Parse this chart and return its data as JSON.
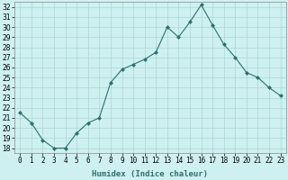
{
  "x": [
    0,
    1,
    2,
    3,
    4,
    5,
    6,
    7,
    8,
    9,
    10,
    11,
    12,
    13,
    14,
    15,
    16,
    17,
    18,
    19,
    20,
    21,
    22,
    23
  ],
  "y": [
    21.5,
    20.5,
    18.8,
    18.0,
    18.0,
    19.5,
    20.5,
    21.0,
    24.5,
    25.8,
    26.3,
    26.8,
    27.5,
    30.0,
    29.0,
    30.5,
    32.2,
    30.2,
    28.3,
    27.0,
    25.5,
    25.0,
    24.0,
    23.2
  ],
  "line_color": "#2e7070",
  "marker": "D",
  "marker_size": 2.0,
  "bg_color": "#cff0f0",
  "grid_color": "#a8d8d8",
  "xlabel": "Humidex (Indice chaleur)",
  "ylim": [
    17.5,
    32.5
  ],
  "xlim": [
    -0.5,
    23.5
  ],
  "yticks": [
    18,
    19,
    20,
    21,
    22,
    23,
    24,
    25,
    26,
    27,
    28,
    29,
    30,
    31,
    32
  ],
  "xtick_labels": [
    "0",
    "1",
    "2",
    "3",
    "4",
    "5",
    "6",
    "7",
    "8",
    "9",
    "10",
    "11",
    "12",
    "13",
    "14",
    "15",
    "16",
    "17",
    "18",
    "19",
    "20",
    "21",
    "22",
    "23"
  ],
  "xlabel_fontsize": 6.5,
  "tick_fontsize": 5.5
}
